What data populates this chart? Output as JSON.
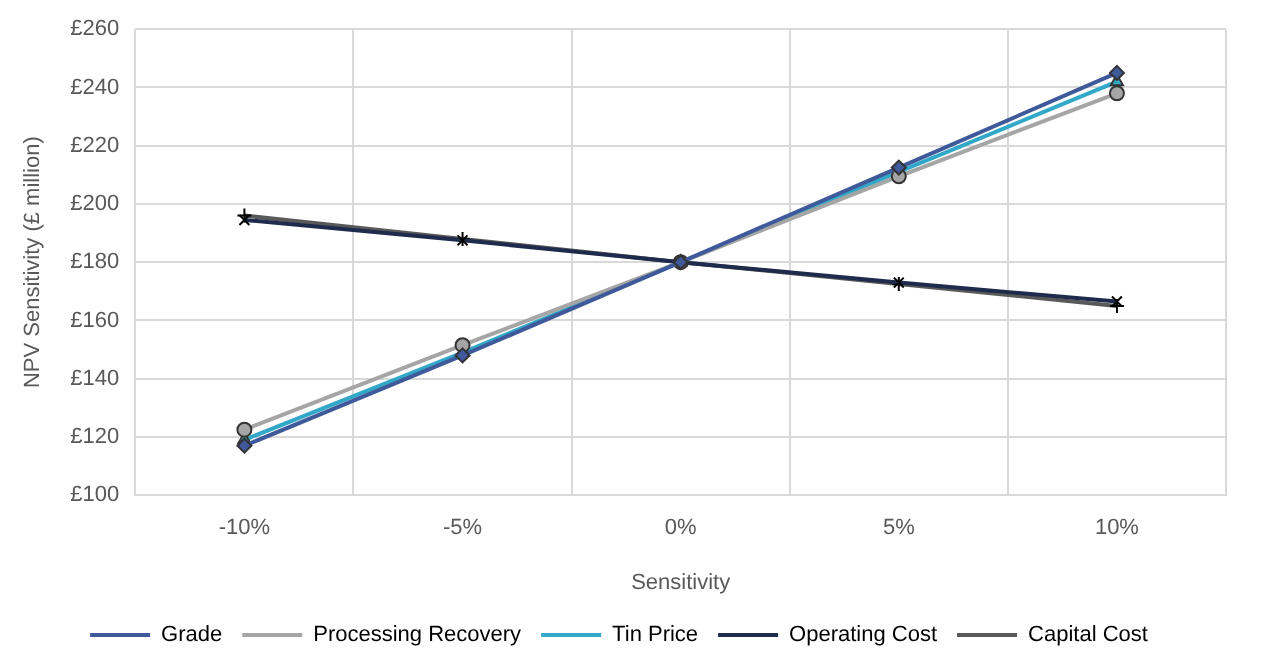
{
  "chart_data": {
    "type": "line",
    "xlabel": "Sensitivity",
    "ylabel": "NPV Sensitivity (£ million)",
    "categories": [
      "-10%",
      "-5%",
      "0%",
      "5%",
      "10%"
    ],
    "series": [
      {
        "name": "Grade",
        "color": "#3f5a9a",
        "marker": "diamond",
        "values": [
          117,
          148,
          180,
          212.5,
          245
        ]
      },
      {
        "name": "Processing Recovery",
        "color": "#a5a5a5",
        "marker": "circle",
        "values": [
          122.5,
          151.5,
          180,
          209.5,
          238
        ]
      },
      {
        "name": "Tin Price",
        "color": "#31a8c8",
        "marker": "triangle",
        "values": [
          119,
          149,
          180,
          211,
          242
        ]
      },
      {
        "name": "Operating Cost",
        "color": "#1f2b4d",
        "marker": "cross",
        "values": [
          194.5,
          187.5,
          180,
          173,
          166.5
        ]
      },
      {
        "name": "Capital Cost",
        "color": "#595959",
        "marker": "plus",
        "values": [
          196,
          188,
          180,
          172.5,
          165
        ]
      }
    ],
    "ylim": [
      100,
      260
    ],
    "yticks": [
      {
        "value": 100,
        "label": "£100"
      },
      {
        "value": 120,
        "label": "£120"
      },
      {
        "value": 140,
        "label": "£140"
      },
      {
        "value": 160,
        "label": "£160"
      },
      {
        "value": 180,
        "label": "£180"
      },
      {
        "value": 200,
        "label": "£200"
      },
      {
        "value": 220,
        "label": "£220"
      },
      {
        "value": 240,
        "label": "£240"
      },
      {
        "value": 260,
        "label": "£260"
      }
    ],
    "grid": true,
    "legend": "bottom",
    "line_style": "solid"
  }
}
